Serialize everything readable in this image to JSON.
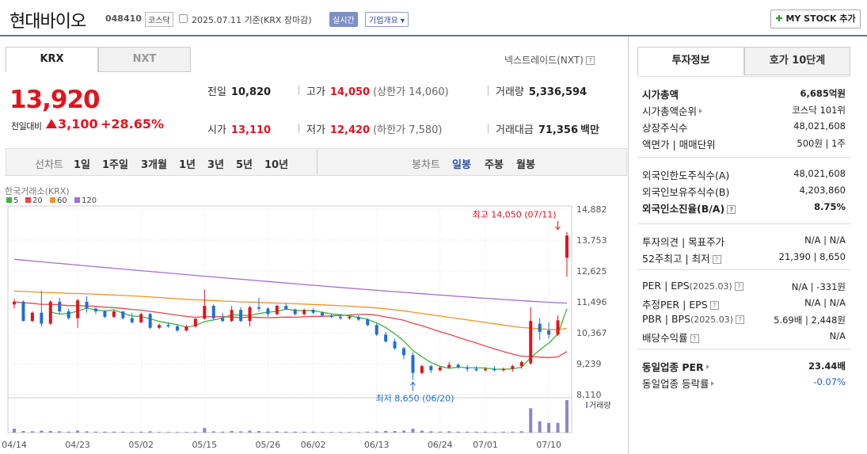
{
  "header": {
    "title": "현대바이오",
    "code": "048410",
    "market_badge": "코스닥",
    "basis": "2025.07.11  기준(KRX 장마감)",
    "realtime_badge": "실시간",
    "company_badge": "기업개요",
    "mystock_label": "MY STOCK 추가"
  },
  "market_tabs": {
    "krx": "KRX",
    "nxt": "NXT",
    "nxt_note": "넥스트레이드(NXT)"
  },
  "quote": {
    "price": "13,920",
    "change_label": "전일대비",
    "change": "3,100",
    "change_pct": "+28.65%",
    "prev_close_label": "전일",
    "prev_close": "10,820",
    "high_label": "고가",
    "high": "14,050",
    "upper_limit": "(상한가 14,060)",
    "volume_label": "거래량",
    "volume": "5,336,594",
    "open_label": "시가",
    "open": "13,110",
    "low_label": "저가",
    "low": "12,420",
    "lower_limit": "(하한가 7,580)",
    "amount_label": "거래대금",
    "amount": "71,356",
    "amount_unit": "백만"
  },
  "chart_toolbar": {
    "line_label": "선차트",
    "line_periods": [
      "1일",
      "1주일",
      "3개월",
      "1년",
      "3년",
      "5년",
      "10년"
    ],
    "candle_label": "봉차트",
    "candle_periods": [
      "일봉",
      "주봉",
      "월봉"
    ],
    "candle_selected": "일봉"
  },
  "colors": {
    "up": "#e0141e",
    "down": "#1f6fd6",
    "ma5": "#3cb43c",
    "ma20": "#e8454a",
    "ma60": "#f0932b",
    "ma120": "#a56bd6",
    "volume": "#8f86c6"
  },
  "chart_data": {
    "type": "candlestick",
    "source_label": "한국거래소(KRX)",
    "legend": [
      {
        "name": "5",
        "color": "#3cb43c"
      },
      {
        "name": "20",
        "color": "#e8454a"
      },
      {
        "name": "60",
        "color": "#f0932b"
      },
      {
        "name": "120",
        "color": "#a56bd6"
      }
    ],
    "y_ticks": [
      "14,882",
      "13,753",
      "12,625",
      "11,496",
      "10,367",
      "9,239",
      "8,110"
    ],
    "ylim": [
      8110,
      14882
    ],
    "x_ticks": [
      {
        "label": "04/14",
        "i": 0
      },
      {
        "label": "04/23",
        "i": 7
      },
      {
        "label": "05/02",
        "i": 14
      },
      {
        "label": "05/15",
        "i": 21
      },
      {
        "label": "05/26",
        "i": 28
      },
      {
        "label": "06/02",
        "i": 33
      },
      {
        "label": "06/13",
        "i": 40
      },
      {
        "label": "06/24",
        "i": 47
      },
      {
        "label": "07/01",
        "i": 52
      },
      {
        "label": "07/10",
        "i": 59
      }
    ],
    "max_annotation": {
      "text": "최고 14,050 (07/11)",
      "i": 60,
      "value": 14050
    },
    "min_annotation": {
      "text": "최저 8,650 (06/20)",
      "i": 44,
      "value": 8650
    },
    "volume_label": "거래량",
    "ohlc": [
      [
        11400,
        11600,
        11250,
        11500
      ],
      [
        11500,
        11550,
        10780,
        10800
      ],
      [
        10800,
        11150,
        10750,
        11100
      ],
      [
        11100,
        11900,
        10600,
        10700
      ],
      [
        10700,
        11550,
        10650,
        11500
      ],
      [
        11500,
        11650,
        11050,
        11150
      ],
      [
        11150,
        11250,
        10850,
        10900
      ],
      [
        10900,
        11600,
        10550,
        11550
      ],
      [
        11500,
        11700,
        11100,
        11250
      ],
      [
        11250,
        11300,
        11050,
        11150
      ],
      [
        11150,
        11200,
        10900,
        10950
      ],
      [
        10950,
        11200,
        10900,
        11150
      ],
      [
        11150,
        11150,
        10850,
        10900
      ],
      [
        10900,
        11100,
        10700,
        10750
      ],
      [
        10750,
        11100,
        10720,
        11050
      ],
      [
        11050,
        11100,
        10500,
        10550
      ],
      [
        10550,
        10700,
        10500,
        10650
      ],
      [
        10650,
        10750,
        10550,
        10600
      ],
      [
        10600,
        10650,
        10400,
        10450
      ],
      [
        10450,
        10650,
        10420,
        10600
      ],
      [
        10600,
        10900,
        10550,
        10880
      ],
      [
        10880,
        11950,
        10850,
        11350
      ],
      [
        11350,
        11400,
        10820,
        10900
      ],
      [
        10900,
        11100,
        10750,
        10800
      ],
      [
        10800,
        11350,
        10750,
        11200
      ],
      [
        11200,
        11300,
        10750,
        10800
      ],
      [
        10800,
        11350,
        10600,
        11300
      ],
      [
        11300,
        11650,
        11150,
        11250
      ],
      [
        11250,
        11300,
        10950,
        11050
      ],
      [
        11050,
        11400,
        11000,
        11350
      ],
      [
        11350,
        11450,
        11200,
        11220
      ],
      [
        11220,
        11250,
        11000,
        11050
      ],
      [
        11050,
        11250,
        11000,
        11200
      ],
      [
        11200,
        11250,
        11050,
        11100
      ],
      [
        11100,
        11150,
        10950,
        11000
      ],
      [
        11000,
        11050,
        10900,
        10950
      ],
      [
        10950,
        11050,
        10850,
        10900
      ],
      [
        10900,
        11000,
        10850,
        10950
      ],
      [
        10950,
        11000,
        10800,
        10850
      ],
      [
        10850,
        10900,
        10600,
        10650
      ],
      [
        10650,
        10700,
        10250,
        10300
      ],
      [
        10300,
        10400,
        10000,
        10050
      ],
      [
        10050,
        10150,
        9750,
        9800
      ],
      [
        9800,
        9850,
        9400,
        9550
      ],
      [
        9550,
        9650,
        8650,
        8900
      ],
      [
        8900,
        9200,
        8850,
        9150
      ],
      [
        9150,
        9200,
        8900,
        9000
      ],
      [
        9000,
        9150,
        8950,
        9100
      ],
      [
        9100,
        9300,
        9050,
        9200
      ],
      [
        9200,
        9250,
        9050,
        9100
      ],
      [
        9100,
        9200,
        8950,
        9050
      ],
      [
        9050,
        9150,
        8950,
        9000
      ],
      [
        9000,
        9120,
        8950,
        9050
      ],
      [
        9050,
        9150,
        8950,
        9000
      ],
      [
        9000,
        9100,
        8950,
        9050
      ],
      [
        9050,
        9200,
        8950,
        9150
      ],
      [
        9150,
        9350,
        9050,
        9300
      ],
      [
        9250,
        11300,
        9200,
        10800
      ],
      [
        10700,
        10900,
        10100,
        10400
      ],
      [
        10450,
        10750,
        10150,
        10300
      ],
      [
        10300,
        11000,
        10250,
        10820
      ],
      [
        13110,
        14050,
        12420,
        13920
      ]
    ],
    "ma120_end": 11450,
    "volumes": [
      12,
      5,
      4,
      6,
      5,
      4,
      3,
      6,
      4,
      3,
      3,
      3,
      3,
      2,
      3,
      4,
      2,
      2,
      2,
      2,
      3,
      14,
      4,
      3,
      5,
      4,
      6,
      5,
      3,
      4,
      3,
      3,
      3,
      3,
      2,
      2,
      2,
      2,
      2,
      3,
      4,
      5,
      5,
      6,
      12,
      6,
      4,
      3,
      4,
      3,
      3,
      3,
      3,
      2,
      3,
      3,
      4,
      75,
      35,
      30,
      30,
      100
    ]
  },
  "right_panel": {
    "tab_invest": "투자정보",
    "tab_orderbook": "호가 10단계",
    "sec1": [
      {
        "k": "시가총액",
        "v": "6,685억원",
        "kb": true,
        "vb": true
      },
      {
        "k": "시가총액순위",
        "v": "코스닥 101위",
        "arrow": true
      },
      {
        "k": "상장주식수",
        "v": "48,021,608"
      },
      {
        "k": "액면가 | 매매단위",
        "v": "500원 | 1주"
      }
    ],
    "sec2": [
      {
        "k": "외국인한도주식수(A)",
        "v": "48,021,608"
      },
      {
        "k": "외국인보유주식수(B)",
        "v": "4,203,860"
      },
      {
        "k": "외국인소진율(B/A)",
        "v": "8.75%",
        "kb": true,
        "vb": true,
        "q": true
      }
    ],
    "sec3": [
      {
        "k": "투자의견 | 목표주가",
        "v": "N/A | N/A"
      },
      {
        "k": "52주최고 | 최저",
        "v": "21,390 | 8,650",
        "q": true
      }
    ],
    "sec4": [
      {
        "k": "PER | EPS",
        "ksub": "(2025.03)",
        "v": "N/A | -331원",
        "q": true
      },
      {
        "k": "추정PER | EPS",
        "v": "N/A | N/A",
        "q": true
      },
      {
        "k": "PBR | BPS",
        "ksub": "(2025.03)",
        "v": "5.69배 | 2,448원",
        "q": true
      },
      {
        "k": "배당수익률",
        "v": "N/A",
        "q": true
      }
    ],
    "sec5": [
      {
        "k": "동일업종 PER",
        "v": "23.44배",
        "kb": true,
        "vb": true,
        "arrow": true
      },
      {
        "k": "동일업종 등락률",
        "v": "-0.07%",
        "arrow": true,
        "blue": true
      }
    ]
  }
}
